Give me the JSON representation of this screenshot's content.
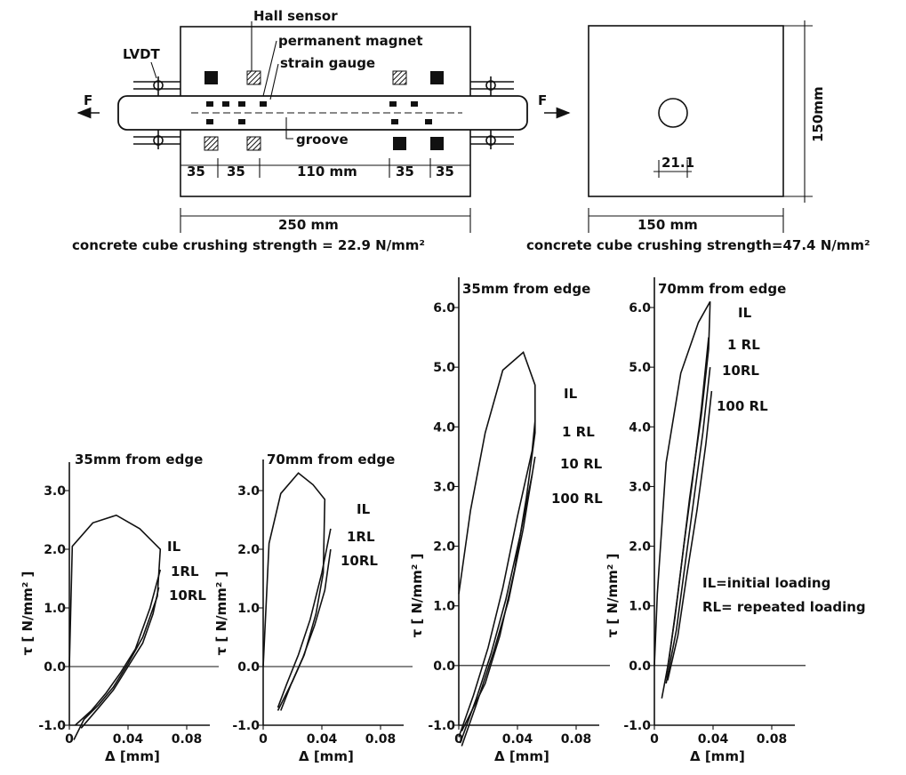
{
  "diagram": {
    "labels": {
      "hall_sensor": "Hall sensor",
      "permanent_magnet": "permanent magnet",
      "strain_gauge": "strain gauge",
      "lvdt": "LVDT",
      "force_left": "F",
      "force_right": "F",
      "groove": "groove"
    },
    "left_dims": [
      "35",
      "35",
      "110 mm",
      "35",
      "35"
    ],
    "left_total": "250 mm",
    "left_strength": "concrete cube crushing strength = 22.9 N/mm²",
    "right_height": "150mm",
    "right_bar": "21.1",
    "right_total": "150 mm",
    "right_strength": "concrete cube crushing strength=47.4 N/mm²"
  },
  "legend": {
    "il": "IL=initial loading",
    "rl": "RL= repeated loading"
  },
  "chart_data": [
    {
      "type": "line",
      "title": "35mm from edge",
      "xlabel": "Δ [mm]",
      "ylabel": "τ [ N/mm² ]",
      "xlim": [
        0,
        0.1
      ],
      "ylim": [
        -1.0,
        3.2
      ],
      "xticks": [
        "0",
        "0.04",
        "0.08"
      ],
      "yticks": [
        "-1.0",
        "0.0",
        "1.0",
        "2.0",
        "3.0"
      ],
      "series": [
        {
          "name": "IL",
          "x": [
            0.0,
            0.002,
            0.016,
            0.032,
            0.048,
            0.058,
            0.062,
            0.06,
            0.05,
            0.04,
            0.03,
            0.02,
            0.01,
            0.003
          ],
          "y": [
            0.0,
            2.05,
            2.45,
            2.58,
            2.35,
            2.1,
            2.0,
            1.2,
            0.5,
            0.05,
            -0.35,
            -0.65,
            -0.9,
            -1.25
          ]
        },
        {
          "name": "1RL",
          "x": [
            0.004,
            0.015,
            0.025,
            0.035,
            0.045,
            0.055,
            0.062
          ],
          "y": [
            -1.0,
            -0.75,
            -0.45,
            -0.1,
            0.3,
            1.0,
            1.65
          ]
        },
        {
          "name": "10RL",
          "x": [
            0.008,
            0.02,
            0.03,
            0.04,
            0.05,
            0.057,
            0.061
          ],
          "y": [
            -1.05,
            -0.7,
            -0.4,
            0.0,
            0.4,
            0.9,
            1.35
          ]
        }
      ]
    },
    {
      "type": "line",
      "title": "70mm from edge",
      "xlabel": "Δ [mm]",
      "ylabel": "τ [ N/mm² ]",
      "xlim": [
        0,
        0.1
      ],
      "ylim": [
        -1.0,
        3.4
      ],
      "xticks": [
        "0",
        "0.04",
        "0.08"
      ],
      "yticks": [
        "-1.0",
        "0.0",
        "1.0",
        "2.0",
        "3.0"
      ],
      "series": [
        {
          "name": "IL",
          "x": [
            0.0,
            0.004,
            0.012,
            0.024,
            0.034,
            0.042,
            0.041,
            0.036,
            0.028,
            0.02,
            0.014,
            0.01
          ],
          "y": [
            0.0,
            2.1,
            2.95,
            3.3,
            3.1,
            2.85,
            1.6,
            0.9,
            0.2,
            -0.25,
            -0.55,
            -0.75
          ]
        },
        {
          "name": "1RL",
          "x": [
            0.01,
            0.016,
            0.024,
            0.032,
            0.04,
            0.046
          ],
          "y": [
            -0.7,
            -0.3,
            0.2,
            0.8,
            1.6,
            2.35
          ]
        },
        {
          "name": "10RL",
          "x": [
            0.012,
            0.019,
            0.027,
            0.035,
            0.042,
            0.046
          ],
          "y": [
            -0.75,
            -0.3,
            0.15,
            0.7,
            1.3,
            2.0
          ]
        }
      ]
    },
    {
      "type": "line",
      "title": "35mm from edge",
      "xlabel": "Δ [mm]",
      "ylabel": "τ [ N/mm² ]",
      "xlim": [
        0,
        0.1
      ],
      "ylim": [
        -1.0,
        6.5
      ],
      "xticks": [
        "0",
        "0.04",
        "0.08"
      ],
      "yticks": [
        "-1.0",
        "0.0",
        "1.0",
        "2.0",
        "3.0",
        "4.0",
        "5.0",
        "6.0"
      ],
      "series": [
        {
          "name": "IL",
          "x": [
            0.0,
            0.008,
            0.018,
            0.03,
            0.044,
            0.052,
            0.052,
            0.046,
            0.038,
            0.028,
            0.018,
            0.008,
            0.002
          ],
          "y": [
            1.2,
            2.6,
            3.9,
            4.95,
            5.25,
            4.7,
            3.9,
            2.8,
            1.6,
            0.5,
            -0.3,
            -0.8,
            -1.1
          ]
        },
        {
          "name": "1 RL",
          "x": [
            0.0,
            0.01,
            0.02,
            0.03,
            0.04,
            0.05,
            0.052
          ],
          "y": [
            -1.2,
            -0.5,
            0.3,
            1.3,
            2.5,
            3.6,
            4.1
          ]
        },
        {
          "name": "10 RL",
          "x": [
            0.001,
            0.012,
            0.022,
            0.032,
            0.042,
            0.05
          ],
          "y": [
            -1.3,
            -0.55,
            0.2,
            1.1,
            2.2,
            3.2
          ]
        },
        {
          "name": "100 RL",
          "x": [
            0.002,
            0.012,
            0.024,
            0.034,
            0.044,
            0.052
          ],
          "y": [
            -1.35,
            -0.65,
            0.25,
            1.1,
            2.3,
            3.5
          ]
        }
      ]
    },
    {
      "type": "line",
      "title": "70mm from edge",
      "xlabel": "Δ [mm]",
      "ylabel": "τ [ N/mm² ]",
      "xlim": [
        0,
        0.1
      ],
      "ylim": [
        -1.0,
        6.5
      ],
      "xticks": [
        "0",
        "0.04",
        "0.08"
      ],
      "yticks": [
        "-1.0",
        "0.0",
        "1.0",
        "2.0",
        "3.0",
        "4.0",
        "5.0",
        "6.0"
      ],
      "series": [
        {
          "name": "IL",
          "x": [
            0.0,
            0.002,
            0.008,
            0.018,
            0.03,
            0.038,
            0.037,
            0.032,
            0.024,
            0.016,
            0.01,
            0.005
          ],
          "y": [
            0.0,
            1.2,
            3.4,
            4.9,
            5.75,
            6.1,
            5.3,
            4.2,
            2.8,
            1.2,
            0.1,
            -0.55
          ]
        },
        {
          "name": "1 RL",
          "x": [
            0.008,
            0.014,
            0.02,
            0.026,
            0.032,
            0.037
          ],
          "y": [
            -0.2,
            0.8,
            2.0,
            3.1,
            4.3,
            5.5
          ]
        },
        {
          "name": "10RL",
          "x": [
            0.008,
            0.015,
            0.021,
            0.027,
            0.033,
            0.038
          ],
          "y": [
            -0.3,
            0.6,
            1.7,
            2.8,
            3.9,
            5.0
          ]
        },
        {
          "name": "100 RL",
          "x": [
            0.009,
            0.016,
            0.022,
            0.029,
            0.035,
            0.039
          ],
          "y": [
            -0.25,
            0.5,
            1.5,
            2.6,
            3.7,
            4.6
          ]
        }
      ]
    }
  ]
}
